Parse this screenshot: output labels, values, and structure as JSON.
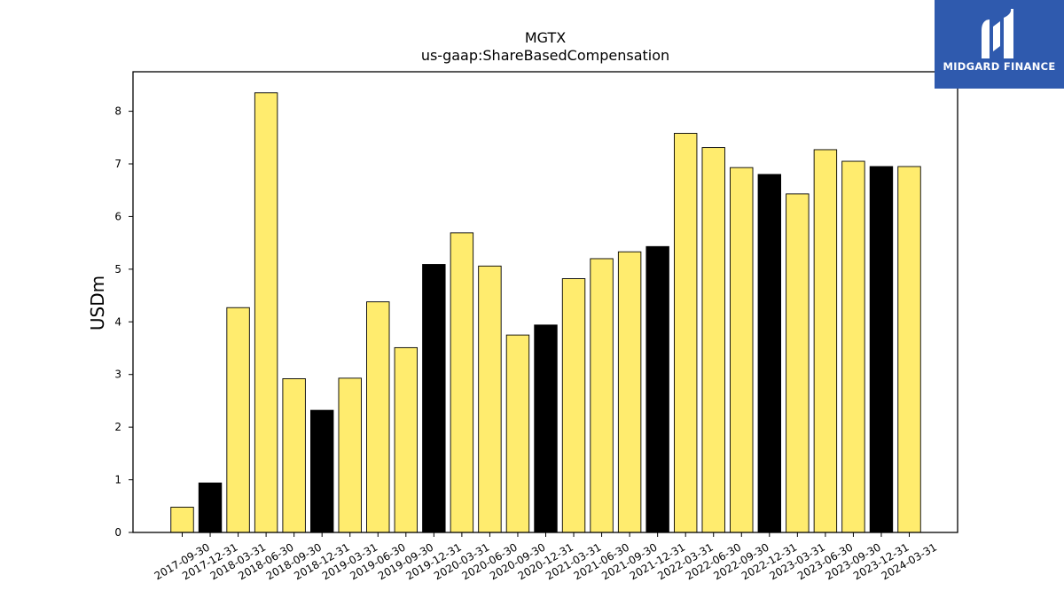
{
  "brand": {
    "name": "MIDGARD FINANCE",
    "bg_color": "#2f5aae"
  },
  "colors": {
    "bar_yellow": "#ffec6e",
    "bar_black": "#000000",
    "edge": "#000000"
  },
  "chart_data": {
    "type": "bar",
    "title": "MGTX",
    "subtitle": "us-gaap:ShareBasedCompensation",
    "xlabel": "",
    "ylabel": "USDm",
    "ylim": [
      0,
      8.75
    ],
    "yticks": [
      0,
      1,
      2,
      3,
      4,
      5,
      6,
      7,
      8
    ],
    "grid": false,
    "categories": [
      "2017-09-30",
      "2017-12-31",
      "2018-03-31",
      "2018-06-30",
      "2018-09-30",
      "2018-12-31",
      "2019-03-31",
      "2019-06-30",
      "2019-09-30",
      "2019-12-31",
      "2020-03-31",
      "2020-06-30",
      "2020-09-30",
      "2020-12-31",
      "2021-03-31",
      "2021-06-30",
      "2021-09-30",
      "2021-12-31",
      "2022-03-31",
      "2022-06-30",
      "2022-09-30",
      "2022-12-31",
      "2023-03-31",
      "2023-06-30",
      "2023-09-30",
      "2023-12-31",
      "2024-03-31"
    ],
    "values": [
      0.48,
      0.94,
      4.27,
      8.35,
      2.92,
      2.32,
      2.93,
      4.38,
      3.51,
      5.09,
      5.69,
      5.06,
      3.75,
      3.94,
      4.82,
      5.2,
      5.33,
      5.43,
      7.58,
      7.31,
      6.93,
      6.8,
      6.43,
      7.27,
      7.05,
      6.95,
      6.95
    ],
    "bar_colors": [
      "yellow",
      "black",
      "yellow",
      "yellow",
      "yellow",
      "black",
      "yellow",
      "yellow",
      "yellow",
      "black",
      "yellow",
      "yellow",
      "yellow",
      "black",
      "yellow",
      "yellow",
      "yellow",
      "black",
      "yellow",
      "yellow",
      "yellow",
      "black",
      "yellow",
      "yellow",
      "yellow",
      "black",
      "yellow"
    ]
  }
}
